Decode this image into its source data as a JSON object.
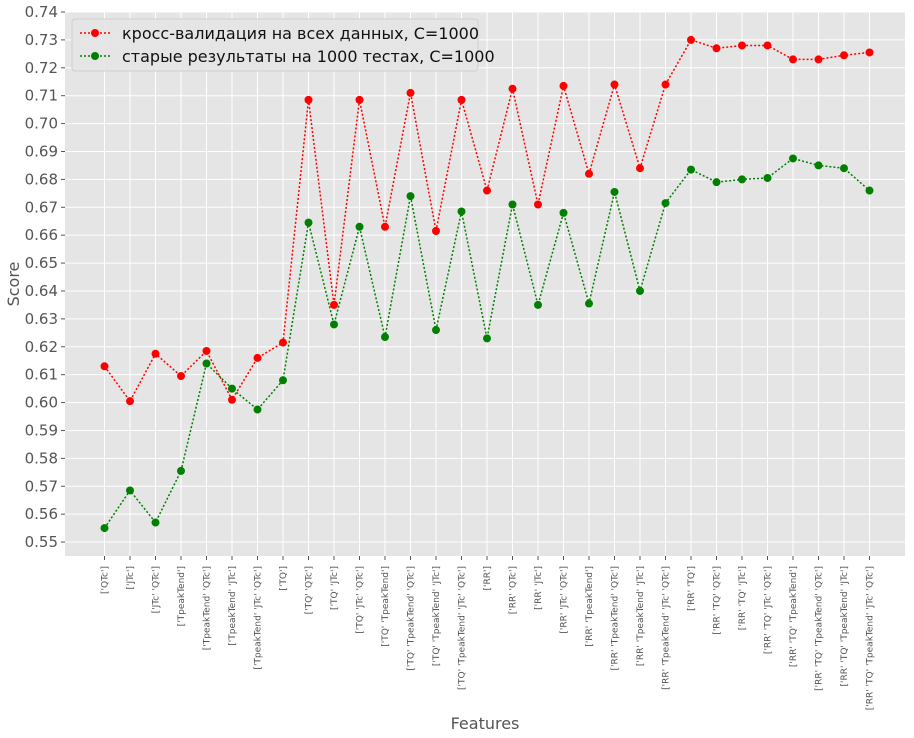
{
  "chart_data": {
    "type": "line",
    "xlabel": "Features",
    "ylabel": "Score",
    "ylim": [
      0.545,
      0.74
    ],
    "yticks": [
      0.55,
      0.56,
      0.57,
      0.58,
      0.59,
      0.6,
      0.61,
      0.62,
      0.63,
      0.64,
      0.65,
      0.66,
      0.67,
      0.68,
      0.69,
      0.7,
      0.71,
      0.72,
      0.73,
      0.74
    ],
    "ytick_labels": [
      "0.55",
      "0.56",
      "0.57",
      "0.58",
      "0.59",
      "0.60",
      "0.61",
      "0.62",
      "0.63",
      "0.64",
      "0.65",
      "0.66",
      "0.67",
      "0.68",
      "0.69",
      "0.70",
      "0.71",
      "0.72",
      "0.73",
      "0.74"
    ],
    "grid": true,
    "legend_position": "top-left",
    "background": "#e5e5e5",
    "categories": [
      "['QTc']",
      "['JTc']",
      "['JTc' 'QTc']",
      "['TpeakTend']",
      "['TpeakTend' 'QTc']",
      "['TpeakTend' 'JTc']",
      "['TpeakTend' 'JTc' 'QTc']",
      "['TQ']",
      "['TQ' 'QTc']",
      "['TQ' 'JTc']",
      "['TQ' 'JTc' 'QTc']",
      "['TQ' 'TpeakTend']",
      "['TQ' 'TpeakTend' 'QTc']",
      "['TQ' 'TpeakTend' 'JTc']",
      "['TQ' 'TpeakTend' 'JTc' 'QTc']",
      "['RR']",
      "['RR' 'QTc']",
      "['RR' 'JTc']",
      "['RR' 'JTc' 'QTc']",
      "['RR' 'TpeakTend']",
      "['RR' 'TpeakTend' 'QTc']",
      "['RR' 'TpeakTend' 'JTc']",
      "['RR' 'TpeakTend' 'JTc' 'QTc']",
      "['RR' 'TQ']",
      "['RR' 'TQ' 'QTc']",
      "['RR' 'TQ' 'JTc']",
      "['RR' 'TQ' 'JTc' 'QTc']",
      "['RR' 'TQ' 'TpeakTend']",
      "['RR' 'TQ' 'TpeakTend' 'QTc']",
      "['RR' 'TQ' 'TpeakTend' 'JTc']",
      "['RR' 'TQ' 'TpeakTend' 'JTc' 'QTc']"
    ],
    "series": [
      {
        "name": "кросс-валидация на всех данных, C=1000",
        "color": "#ff0000",
        "values": [
          0.613,
          0.6005,
          0.6175,
          0.6095,
          0.6185,
          0.601,
          0.616,
          0.6215,
          0.7085,
          0.635,
          0.7085,
          0.663,
          0.711,
          0.6615,
          0.7085,
          0.676,
          0.7125,
          0.671,
          0.7135,
          0.682,
          0.714,
          0.684,
          0.714,
          0.73,
          0.727,
          0.728,
          0.728,
          0.723,
          0.723,
          0.7245,
          0.7255
        ]
      },
      {
        "name": "старые результаты на 1000 тестах, C=1000",
        "color": "#008000",
        "values": [
          0.555,
          0.5685,
          0.557,
          0.5755,
          0.614,
          0.605,
          0.5975,
          0.608,
          0.6645,
          0.628,
          0.663,
          0.6235,
          0.674,
          0.626,
          0.6685,
          0.623,
          0.671,
          0.635,
          0.668,
          0.6355,
          0.6755,
          0.64,
          0.6715,
          0.6835,
          0.679,
          0.68,
          0.6805,
          0.6875,
          0.685,
          0.684,
          0.676
        ]
      }
    ]
  }
}
